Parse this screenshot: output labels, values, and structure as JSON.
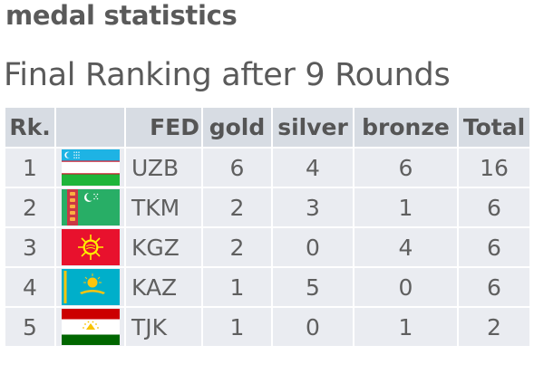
{
  "page": {
    "title": "medal statistics",
    "subtitle": "Final Ranking after 9 Rounds"
  },
  "table": {
    "headers": {
      "rank": "Rk.",
      "flag": "",
      "fed": "FED",
      "gold": "gold",
      "silver": "silver",
      "bronze": "bronze",
      "total": "Total"
    },
    "rows": [
      {
        "rank": "1",
        "flag_icon": "uzbekistan-flag-icon",
        "fed": "UZB",
        "gold": "6",
        "silver": "4",
        "bronze": "6",
        "total": "16"
      },
      {
        "rank": "2",
        "flag_icon": "turkmenistan-flag-icon",
        "fed": "TKM",
        "gold": "2",
        "silver": "3",
        "bronze": "1",
        "total": "6"
      },
      {
        "rank": "3",
        "flag_icon": "kyrgyzstan-flag-icon",
        "fed": "KGZ",
        "gold": "2",
        "silver": "0",
        "bronze": "4",
        "total": "6"
      },
      {
        "rank": "4",
        "flag_icon": "kazakhstan-flag-icon",
        "fed": "KAZ",
        "gold": "1",
        "silver": "5",
        "bronze": "0",
        "total": "6"
      },
      {
        "rank": "5",
        "flag_icon": "tajikistan-flag-icon",
        "fed": "TJK",
        "gold": "1",
        "silver": "0",
        "bronze": "1",
        "total": "2"
      }
    ]
  },
  "colors": {
    "header_bg": "#d7dce3",
    "cell_bg": "#eaecf1",
    "text": "#5f5f5f"
  }
}
